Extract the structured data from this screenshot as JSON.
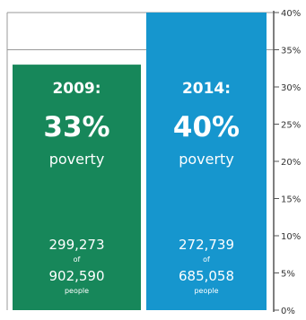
{
  "chart_data": {
    "type": "bar",
    "categories": [
      "2009",
      "2014"
    ],
    "values": [
      33,
      40
    ],
    "unit": "%",
    "ylim": [
      0,
      40
    ],
    "y_ticks": [
      "0%",
      "5%",
      "10%",
      "15%",
      "20%",
      "25%",
      "30%",
      "35%",
      "40%"
    ],
    "grid": false,
    "colors": {
      "bar_2009": "#17875a",
      "bar_2014": "#1696ce",
      "axis": "#555555",
      "frame": "#999999"
    },
    "bars": [
      {
        "year_label": "2009:",
        "pct_label": "33%",
        "word": "poverty",
        "count": "299,273",
        "of_label": "of",
        "total": "902,590",
        "people_label": "people"
      },
      {
        "year_label": "2014:",
        "pct_label": "40%",
        "word": "poverty",
        "count": "272,739",
        "of_label": "of",
        "total": "685,058",
        "people_label": "people"
      }
    ]
  }
}
